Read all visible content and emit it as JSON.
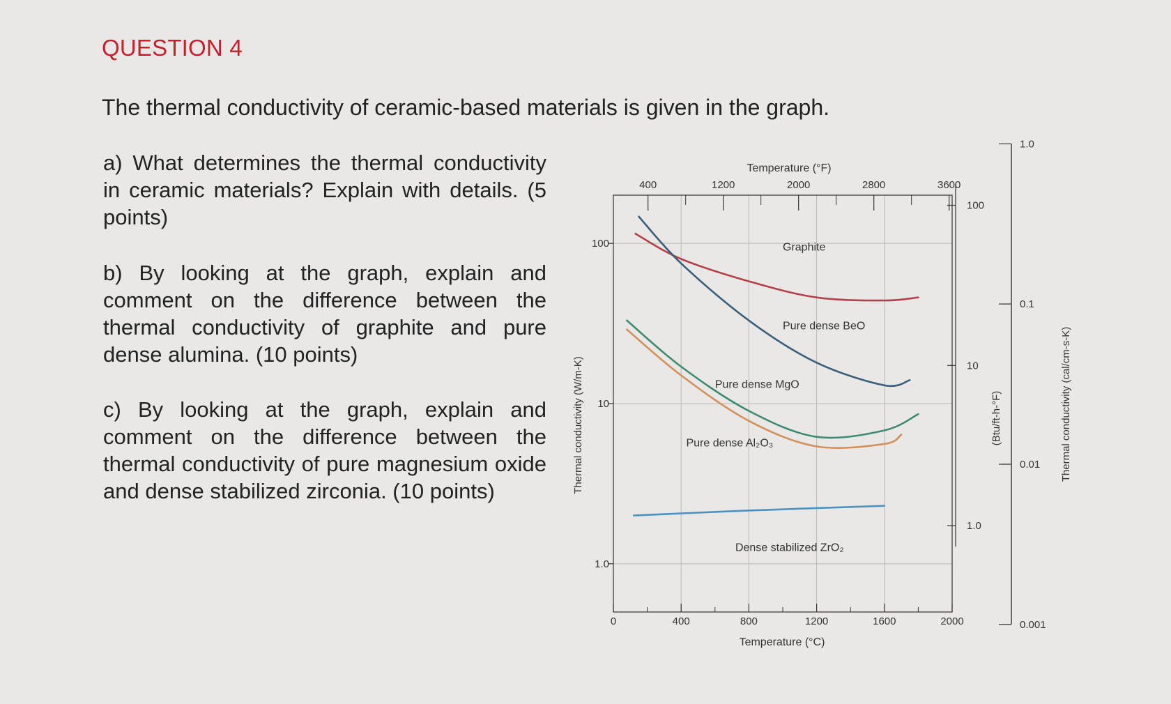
{
  "question": {
    "title": "QUESTION 4",
    "intro": "The thermal conductivity of ceramic-based materials is given in the graph.",
    "parts": [
      {
        "id": "a",
        "text": "a) What determines the thermal conductivity in ceramic materials? Explain with details. (5 points)"
      },
      {
        "id": "b",
        "text": "b) By looking at the graph, explain and comment on the difference between the thermal conductivity of graphite and pure dense alumina. (10 points)"
      },
      {
        "id": "c",
        "text": "c) By looking at the graph, explain and comment on the difference between the thermal conductivity of pure magnesium oxide and dense stabilized zirconia. (10 points)"
      }
    ]
  },
  "colors": {
    "graphite": "#b5404a",
    "beo": "#3b5f7a",
    "mgo": "#3f8a72",
    "al2o3": "#d2905a",
    "zro2": "#4a93c0",
    "axis": "#333333",
    "grid": "#b8b8b8",
    "accent": "#c8202a"
  },
  "chart_data": {
    "type": "line",
    "xlabel": "Temperature (°C)",
    "x2label": "Temperature (°F)",
    "ylabel": "Thermal conductivity (W/m-K)",
    "y2label": "(Btu/ft-h-°F)",
    "y3label": "Thermal conductivity (cal/cm-s-K)",
    "xlim": [
      0,
      2000
    ],
    "ylim": [
      0.5,
      200
    ],
    "yscale": "log",
    "grid": true,
    "x_ticks": [
      {
        "v": 0,
        "label": "0"
      },
      {
        "v": 400,
        "label": "400"
      },
      {
        "v": 800,
        "label": "800"
      },
      {
        "v": 1200,
        "label": "1200"
      },
      {
        "v": 1600,
        "label": "1600"
      },
      {
        "v": 2000,
        "label": "2000"
      }
    ],
    "x_minor_ticks": [
      200,
      600,
      1000,
      1400,
      1800
    ],
    "y_ticks": [
      {
        "v": 1,
        "label": "1.0"
      },
      {
        "v": 10,
        "label": "10"
      },
      {
        "v": 100,
        "label": "100"
      }
    ],
    "x2_ticks": [
      {
        "v": 400,
        "label": "400"
      },
      {
        "v": 1200,
        "label": "1200"
      },
      {
        "v": 2000,
        "label": "2000"
      },
      {
        "v": 2800,
        "label": "2800"
      },
      {
        "v": 3600,
        "label": "3600"
      }
    ],
    "x2_minor_ticks": [
      800,
      1600,
      2400,
      3200
    ],
    "y2_ticks": [
      {
        "v": 1,
        "label": "1.0"
      },
      {
        "v": 10,
        "label": "10"
      },
      {
        "v": 100,
        "label": "100"
      }
    ],
    "y3_ticks": [
      {
        "v": 0.001,
        "label": "0.001"
      },
      {
        "v": 0.01,
        "label": "0.01"
      },
      {
        "v": 0.1,
        "label": "0.1"
      },
      {
        "v": 1,
        "label": "1.0"
      }
    ],
    "series": [
      {
        "key": "graphite",
        "label": "Graphite",
        "label_at": {
          "x": 1000,
          "y": 90
        },
        "points": [
          [
            130,
            115
          ],
          [
            400,
            80
          ],
          [
            800,
            58
          ],
          [
            1200,
            46
          ],
          [
            1600,
            44
          ],
          [
            1800,
            46
          ]
        ]
      },
      {
        "key": "beo",
        "label": "Pure dense BeO",
        "label_at": {
          "x": 1000,
          "y": 29
        },
        "points": [
          [
            150,
            147
          ],
          [
            400,
            75
          ],
          [
            800,
            33
          ],
          [
            1200,
            18
          ],
          [
            1600,
            13
          ],
          [
            1750,
            14
          ]
        ]
      },
      {
        "key": "mgo",
        "label": "Pure dense MgO",
        "label_at": {
          "x": 600,
          "y": 12.5
        },
        "points": [
          [
            80,
            33
          ],
          [
            400,
            17
          ],
          [
            800,
            9
          ],
          [
            1200,
            6.2
          ],
          [
            1600,
            6.8
          ],
          [
            1800,
            8.6
          ]
        ]
      },
      {
        "key": "al2o3",
        "label": "Pure dense Al₂O₃",
        "label_at": {
          "x": 430,
          "y": 5.4
        },
        "points": [
          [
            80,
            29
          ],
          [
            400,
            15
          ],
          [
            800,
            7.8
          ],
          [
            1200,
            5.4
          ],
          [
            1600,
            5.6
          ],
          [
            1700,
            6.4
          ]
        ]
      },
      {
        "key": "zro2",
        "label": "Dense stabilized ZrO₂",
        "label_at": {
          "x": 720,
          "y": 1.2
        },
        "points": [
          [
            120,
            2.0
          ],
          [
            800,
            2.15
          ],
          [
            1600,
            2.3
          ]
        ]
      }
    ]
  }
}
